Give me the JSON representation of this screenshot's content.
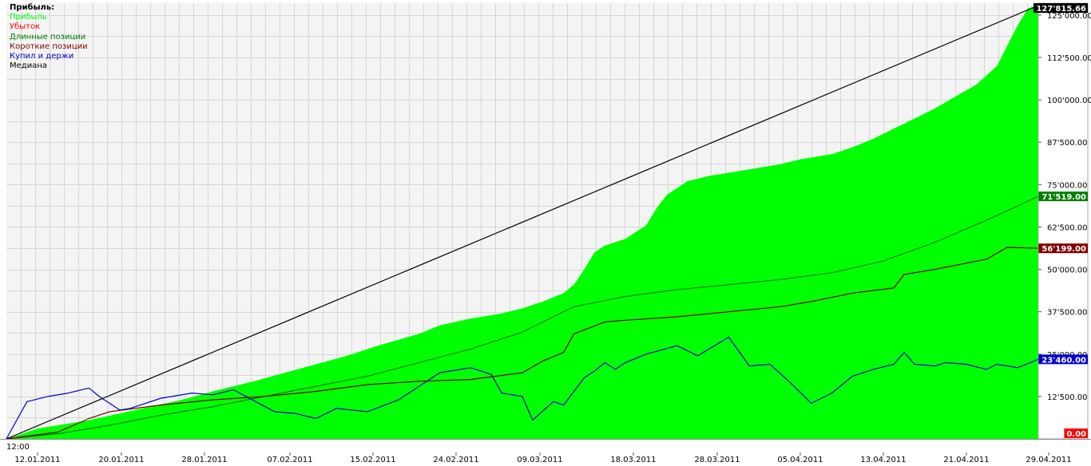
{
  "chart_data": {
    "type": "area",
    "legend": {
      "header": "Прибыль:",
      "entries": [
        {
          "label": "Прибыль",
          "color": "#00ff00"
        },
        {
          "label": "Убыток",
          "color": "#ff0000"
        },
        {
          "label": "Длинные позиции",
          "color": "#008000"
        },
        {
          "label": "Короткие позиции",
          "color": "#800000"
        },
        {
          "label": "Купил и держи",
          "color": "#0000cc"
        },
        {
          "label": "Медиана",
          "color": "#000000"
        }
      ]
    },
    "time_label": "12:00",
    "x_labels": [
      "12.01.2011",
      "20.01.2011",
      "28.01.2011",
      "07.02.2011",
      "15.02.2011",
      "24.02.2011",
      "09.03.2011",
      "18.03.2011",
      "28.03.2011",
      "05.04.2011",
      "13.04.2011",
      "21.04.2011",
      "29.04.2011"
    ],
    "y_ticks": [
      "125'000.00",
      "112'500.00",
      "100'000.00",
      "87'500.00",
      "75'000.00",
      "62'500.00",
      "50'000.00",
      "37'500.00",
      "25'000.00",
      "12'500.00"
    ],
    "y_tick_values": [
      125000,
      112500,
      100000,
      87500,
      75000,
      62500,
      50000,
      37500,
      25000,
      12500
    ],
    "ylim": [
      0,
      128500
    ],
    "value_badges": [
      {
        "text": "127'815.66",
        "value": 127815.66,
        "bg": "#000000",
        "fg": "#ffffff"
      },
      {
        "text": "71'519.00",
        "value": 71519,
        "bg": "#008000",
        "fg": "#ffffff"
      },
      {
        "text": "56'199.00",
        "value": 56199,
        "bg": "#800000",
        "fg": "#ffffff"
      },
      {
        "text": "23'460.00",
        "value": 23460,
        "bg": "#0000cc",
        "fg": "#ffffff"
      },
      {
        "text": "0.00",
        "value": 0,
        "bg": "#ff0000",
        "fg": "#ffffff"
      }
    ],
    "series": [
      {
        "name": "Прибыль",
        "color": "#00ff00",
        "style": "area",
        "x": [
          0,
          3,
          8,
          12,
          17,
          20,
          24,
          27,
          30,
          33,
          36,
          40,
          42,
          45,
          48,
          50,
          52,
          54,
          55,
          56,
          57,
          58,
          60,
          62,
          63,
          64,
          65,
          66,
          68,
          70,
          72,
          75,
          77,
          80,
          82,
          84,
          86,
          88,
          90,
          92,
          94,
          96,
          97,
          98,
          99,
          100
        ],
        "y": [
          0,
          3000,
          5500,
          8200,
          11500,
          14000,
          17000,
          19500,
          22000,
          24500,
          27500,
          31000,
          33500,
          35500,
          37000,
          38500,
          40500,
          43000,
          45500,
          50000,
          55000,
          57000,
          59000,
          63000,
          68000,
          72000,
          74000,
          76000,
          77500,
          78500,
          79500,
          81000,
          82500,
          84000,
          86000,
          88500,
          91500,
          94500,
          97500,
          101000,
          104500,
          110000,
          116000,
          122000,
          127000,
          127815.66
        ]
      },
      {
        "name": "Длинные позиции",
        "color": "#008000",
        "style": "line",
        "x": [
          0,
          5,
          10,
          15,
          20,
          25,
          30,
          35,
          40,
          45,
          50,
          55,
          60,
          65,
          70,
          75,
          80,
          85,
          90,
          95,
          100
        ],
        "y": [
          0,
          1500,
          4000,
          7000,
          9500,
          12500,
          15500,
          18500,
          22500,
          26500,
          31500,
          39000,
          42000,
          44000,
          45500,
          47000,
          49000,
          52500,
          58000,
          64500,
          71519
        ]
      },
      {
        "name": "Короткие позиции",
        "color": "#800000",
        "style": "line",
        "x": [
          0,
          5,
          8,
          10,
          15,
          20,
          25,
          30,
          35,
          40,
          45,
          50,
          52,
          54,
          55,
          58,
          60,
          65,
          70,
          75,
          78,
          82,
          86,
          87,
          90,
          95,
          97,
          100
        ],
        "y": [
          0,
          2000,
          6000,
          8000,
          10000,
          11500,
          12500,
          14000,
          16000,
          17000,
          17500,
          19500,
          23000,
          25500,
          31000,
          34500,
          35000,
          36000,
          37500,
          39000,
          40500,
          43000,
          44500,
          48500,
          50000,
          53000,
          56500,
          56199
        ]
      },
      {
        "name": "Купил и держи",
        "color": "#0000cc",
        "style": "line",
        "x": [
          0,
          2,
          4,
          6,
          8,
          9,
          10,
          11,
          12,
          15,
          18,
          20,
          22,
          26,
          28,
          30,
          32,
          35,
          38,
          40,
          42,
          45,
          47,
          48,
          50,
          51,
          53,
          54,
          55,
          56,
          57,
          58,
          59,
          60,
          62,
          65,
          67,
          70,
          72,
          74,
          76,
          78,
          80,
          82,
          84,
          86,
          87,
          88,
          90,
          91,
          93,
          95,
          96,
          98,
          100
        ],
        "y": [
          0,
          11000,
          12500,
          13500,
          15000,
          12500,
          10500,
          8500,
          9000,
          12000,
          13500,
          13000,
          14500,
          8000,
          7500,
          6000,
          9000,
          8000,
          11500,
          15500,
          19500,
          21000,
          19000,
          13500,
          12500,
          5500,
          11000,
          10000,
          14000,
          18000,
          20000,
          22500,
          20500,
          22500,
          25000,
          27500,
          24500,
          30000,
          21500,
          22000,
          16500,
          10500,
          13500,
          18500,
          20500,
          22000,
          25500,
          22000,
          21500,
          22500,
          22000,
          20500,
          22000,
          21000,
          23460
        ]
      },
      {
        "name": "Медиана",
        "color": "#000000",
        "style": "line",
        "x": [
          0,
          100
        ],
        "y": [
          0,
          127815.66
        ]
      }
    ]
  }
}
